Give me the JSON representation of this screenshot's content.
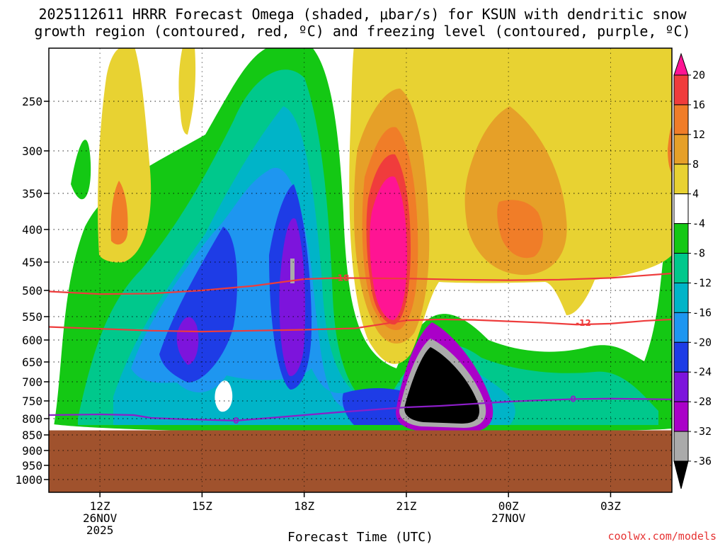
{
  "chart_data": {
    "type": "heatmap",
    "title_line1": "2025112611 HRRR Forecast Omega (shaded, μbar/s) for KSUN with dendritic snow",
    "title_line2": "growth region (contoured, red, ºC) and freezing level (contoured, purple, ºC)",
    "xlabel": "Forecast Time (UTC)",
    "ylabel": "",
    "credit": "coolwx.com/models",
    "x_range_hours": [
      10.5,
      28.8
    ],
    "y_levels_hpa": [
      250,
      300,
      350,
      400,
      450,
      500,
      550,
      600,
      650,
      700,
      750,
      800,
      850,
      900,
      950,
      1000
    ],
    "x_ticks": [
      {
        "hour": 12,
        "label": "12Z",
        "date": "26NOV",
        "year": "2025"
      },
      {
        "hour": 15,
        "label": "15Z",
        "date": "",
        "year": ""
      },
      {
        "hour": 18,
        "label": "18Z",
        "date": "",
        "year": ""
      },
      {
        "hour": 21,
        "label": "21Z",
        "date": "",
        "year": ""
      },
      {
        "hour": 24,
        "label": "00Z",
        "date": "27NOV",
        "year": ""
      },
      {
        "hour": 27,
        "label": "03Z",
        "date": "",
        "year": ""
      }
    ],
    "colorbar": {
      "labels": [
        "20",
        "16",
        "12",
        "8",
        "4",
        "-4",
        "-8",
        "-12",
        "-16",
        "-20",
        "-24",
        "-28",
        "-32",
        "-36"
      ],
      "colors": [
        "#ff1493",
        "#f03c3c",
        "#f07d28",
        "#e6a028",
        "#e8d232",
        "#ffffff",
        "#14c814",
        "#00c88c",
        "#00b4c8",
        "#1e96f0",
        "#1e3ce6",
        "#7d14dc",
        "#aa00c8",
        "#aaaaaa",
        "#000000"
      ]
    },
    "contours": [
      {
        "name": "dendritic-upper",
        "value": "-18",
        "color": "#ee3c3c",
        "points": [
          [
            10.5,
            502
          ],
          [
            12,
            507
          ],
          [
            13.5,
            506
          ],
          [
            15,
            500
          ],
          [
            16.5,
            492
          ],
          [
            18,
            480
          ],
          [
            19,
            478
          ],
          [
            21,
            479
          ],
          [
            22.5,
            481
          ],
          [
            24,
            482
          ],
          [
            25.5,
            481
          ],
          [
            27,
            478
          ],
          [
            28.8,
            470
          ]
        ]
      },
      {
        "name": "dendritic-lower",
        "value": "-12",
        "color": "#ee3c3c",
        "points": [
          [
            10.5,
            572
          ],
          [
            12,
            576
          ],
          [
            13.5,
            580
          ],
          [
            15,
            582
          ],
          [
            16.5,
            580
          ],
          [
            18,
            578
          ],
          [
            19.5,
            575
          ],
          [
            21,
            558
          ],
          [
            22,
            556
          ],
          [
            23,
            557
          ],
          [
            24,
            560
          ],
          [
            25,
            563
          ],
          [
            26,
            567
          ],
          [
            27,
            565
          ],
          [
            28,
            559
          ],
          [
            28.8,
            556
          ]
        ]
      },
      {
        "name": "freezing-level",
        "value": "0",
        "color": "#8c1ec8",
        "points": [
          [
            10.5,
            790
          ],
          [
            12,
            788
          ],
          [
            13,
            790
          ],
          [
            13.5,
            798
          ],
          [
            14.5,
            802
          ],
          [
            16,
            806
          ],
          [
            17,
            798
          ],
          [
            18,
            790
          ],
          [
            19,
            782
          ],
          [
            20,
            775
          ],
          [
            21,
            768
          ],
          [
            22,
            764
          ],
          [
            23,
            758
          ],
          [
            24,
            752
          ],
          [
            25,
            748
          ],
          [
            26,
            745
          ],
          [
            27,
            744
          ],
          [
            28,
            745
          ],
          [
            28.8,
            746
          ]
        ]
      }
    ],
    "contour_labels": [
      {
        "name": "label-minus18",
        "text": "-18",
        "hour": 19.1,
        "hpa": 478
      },
      {
        "name": "label-minus12",
        "text": "-12",
        "hour": 26.2,
        "hpa": 564
      },
      {
        "name": "label-zero-left",
        "text": "0",
        "hour": 16.0,
        "hpa": 806
      },
      {
        "name": "label-zero-right",
        "text": "0",
        "hour": 25.9,
        "hpa": 745
      }
    ],
    "ground_below_hpa": 836,
    "ground_color": "#a0522d"
  }
}
